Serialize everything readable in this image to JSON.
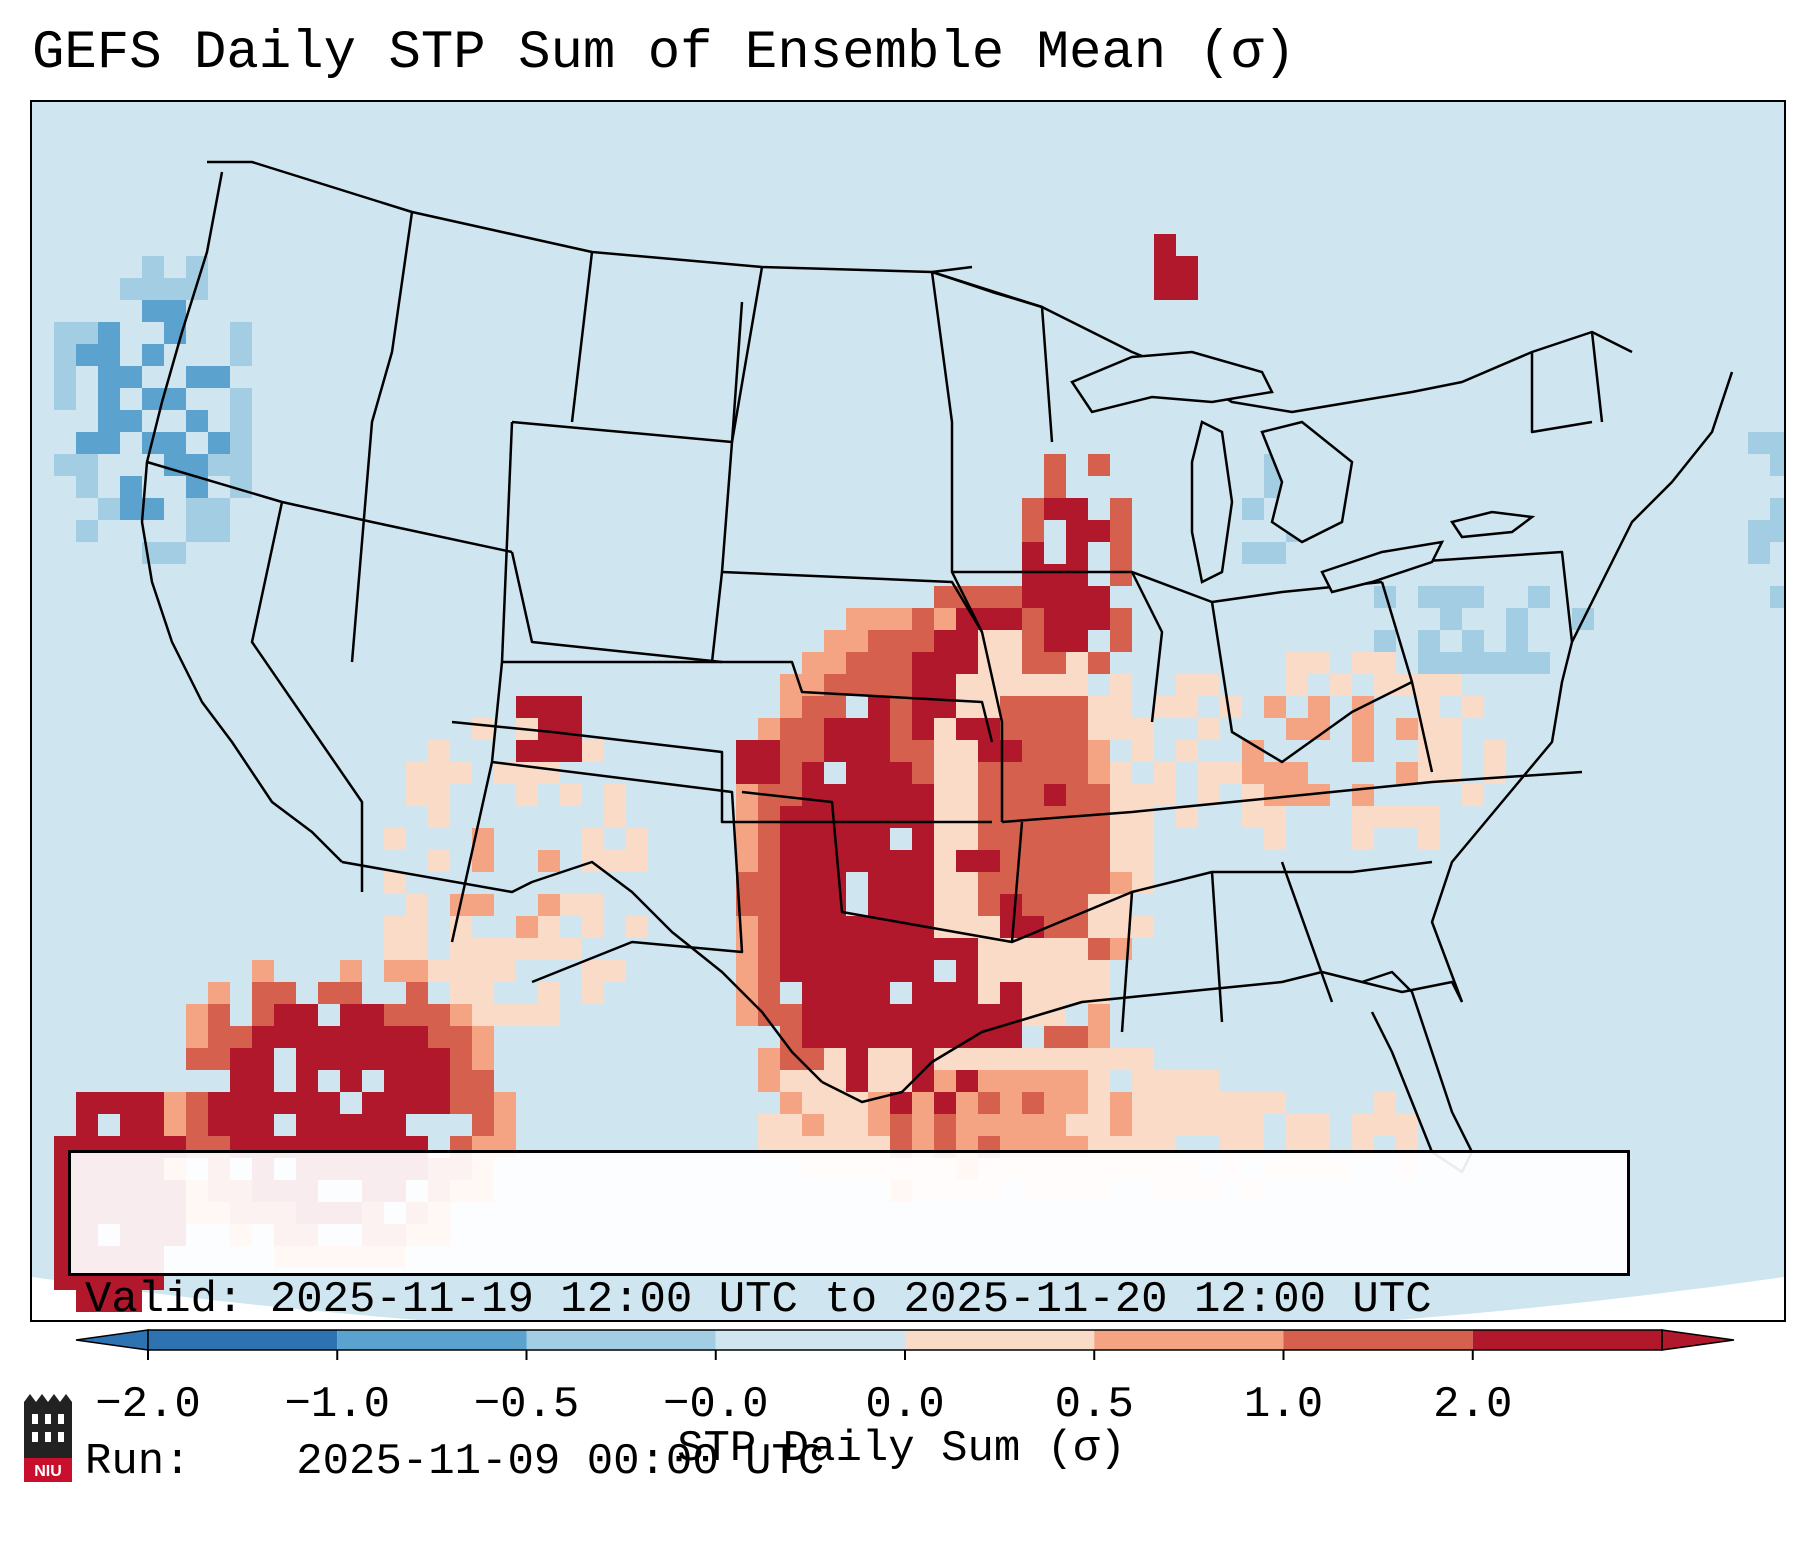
{
  "title": "GEFS Daily STP Sum of Ensemble Mean (σ)",
  "info": {
    "valid_label": "Valid:",
    "valid_value": "2025-11-19 12:00 UTC to 2025-11-20 12:00 UTC",
    "run_label": "Run:",
    "run_value": "2025-11-09 00:00 UTC"
  },
  "colorbar": {
    "label": "STP Daily Sum (σ)",
    "ticks": [
      "−2.0",
      "−1.0",
      "−0.5",
      "−0.0",
      "0.0",
      "0.5",
      "1.0",
      "2.0"
    ],
    "colors": [
      "#2d73b2",
      "#5ba2cf",
      "#a2cde3",
      "#cfe5f0",
      "#fadbc8",
      "#f4a383",
      "#d4604d",
      "#b2182b"
    ]
  },
  "logo": {
    "text": "NIU",
    "color": "#c8102e"
  },
  "map": {
    "domain": "Contiguous United States, southern Canada, northern Mexico",
    "background_color": "#cfe5f0",
    "outside_color": "#ffffff",
    "line_color": "#000000",
    "highlight": "Strongest positive anomalies (>2.0σ) over Kansas, Oklahoma and north Texas; weaker positive anomalies across the Mid-Mississippi valley, Ohio valley and Gulf coast."
  }
}
